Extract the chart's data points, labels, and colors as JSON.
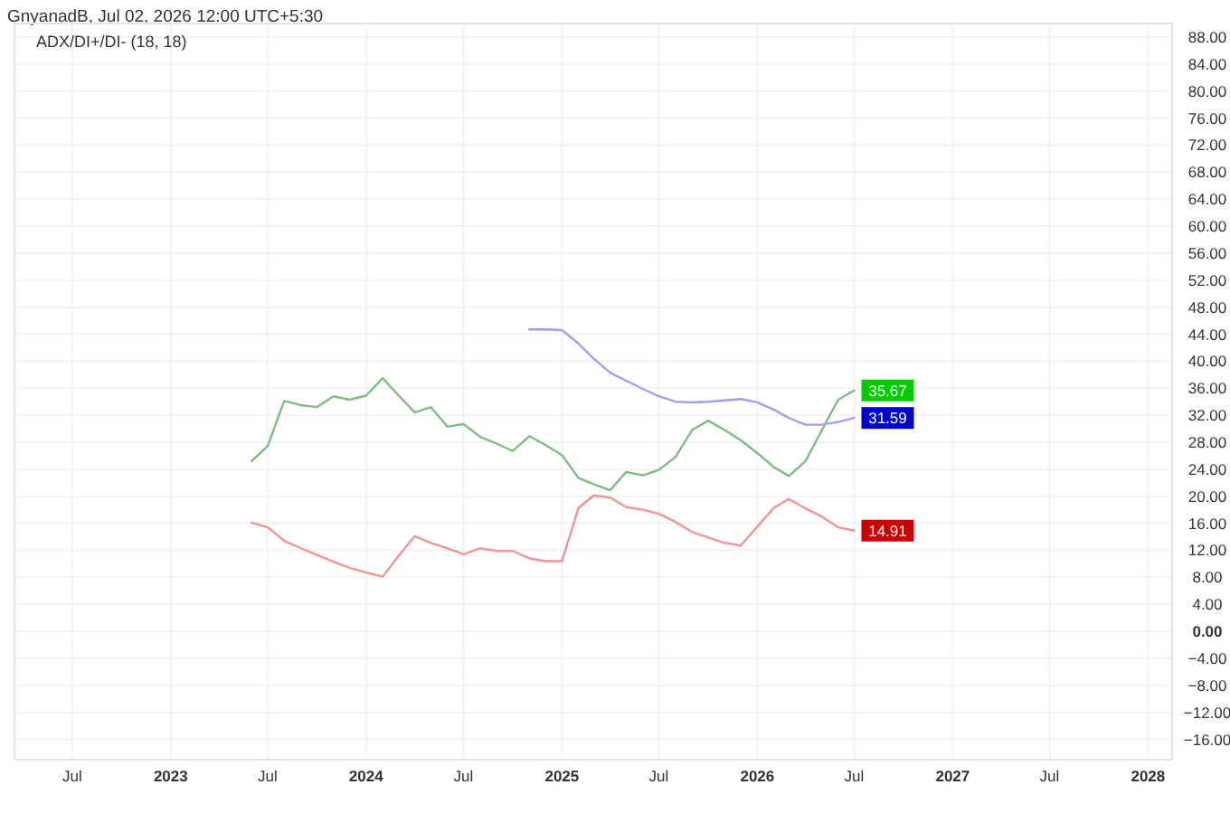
{
  "chart_data": {
    "type": "line",
    "title": "ADX/DI+/DI- (18, 18)",
    "subtitle": "GnyanadB, Jul 02, 2026 12:00 UTC+5:30",
    "x": [
      "2023-06",
      "2023-07",
      "2023-08",
      "2023-09",
      "2023-10",
      "2023-11",
      "2023-12",
      "2024-01",
      "2024-02",
      "2024-03",
      "2024-04",
      "2024-05",
      "2024-06",
      "2024-07",
      "2024-08",
      "2024-09",
      "2024-10",
      "2024-11",
      "2024-12",
      "2025-01",
      "2025-02",
      "2025-03",
      "2025-04",
      "2025-05",
      "2025-06",
      "2025-07",
      "2025-08",
      "2025-09",
      "2025-10",
      "2025-11",
      "2025-12",
      "2026-01",
      "2026-02",
      "2026-03",
      "2026-04",
      "2026-05",
      "2026-06",
      "2026-07"
    ],
    "series": [
      {
        "color": "#80bb80",
        "values": [
          25.2,
          27.4,
          34.1,
          33.5,
          33.2,
          34.8,
          34.3,
          34.9,
          37.5,
          35.0,
          32.4,
          33.2,
          30.3,
          30.7,
          28.8,
          27.8,
          26.7,
          28.9,
          27.6,
          26.1,
          22.7,
          21.8,
          20.9,
          23.6,
          23.1,
          23.9,
          25.8,
          29.8,
          31.2,
          29.8,
          28.3,
          26.4,
          24.3,
          23.0,
          25.2,
          29.7,
          34.3,
          35.67
        ],
        "value_labels": [
          null,
          null,
          null,
          null,
          null,
          null,
          null,
          null,
          null,
          null,
          null,
          null,
          null,
          null,
          null,
          null,
          null,
          null,
          null,
          null,
          null,
          null,
          null,
          null,
          null,
          null,
          null,
          null,
          null,
          null,
          null,
          null,
          null,
          null,
          null,
          null,
          null,
          "35.67"
        ]
      },
      {
        "color": "#f29494",
        "values": [
          16.1,
          15.4,
          13.4,
          12.3,
          11.3,
          10.3,
          9.4,
          8.7,
          8.1,
          11.1,
          14.1,
          13.1,
          12.3,
          11.4,
          12.3,
          11.9,
          11.9,
          10.8,
          10.4,
          10.4,
          18.3,
          20.1,
          19.8,
          18.4,
          18.0,
          17.4,
          16.2,
          14.7,
          13.9,
          13.1,
          12.7,
          15.5,
          18.3,
          19.6,
          18.2,
          17.0,
          15.4,
          14.91
        ],
        "value_labels": [
          null,
          null,
          null,
          null,
          null,
          null,
          null,
          null,
          null,
          null,
          null,
          null,
          null,
          null,
          null,
          null,
          null,
          null,
          null,
          null,
          null,
          null,
          null,
          null,
          null,
          null,
          null,
          null,
          null,
          null,
          null,
          null,
          null,
          null,
          null,
          null,
          null,
          "14.91"
        ]
      },
      {
        "color": "#9e9ef2",
        "x": [
          "2024-11",
          "2024-12",
          "2025-01",
          "2025-02",
          "2025-03",
          "2025-04",
          "2025-05",
          "2025-06",
          "2025-07",
          "2025-08",
          "2025-09",
          "2025-10",
          "2025-11",
          "2025-12",
          "2026-01",
          "2026-02",
          "2026-03",
          "2026-04",
          "2026-05",
          "2026-06",
          "2026-07"
        ],
        "values": [
          44.7,
          44.7,
          44.6,
          42.6,
          40.4,
          38.3,
          37.1,
          35.9,
          34.8,
          34.0,
          33.9,
          34.0,
          34.2,
          34.4,
          33.9,
          32.8,
          31.6,
          30.6,
          30.6,
          31.0,
          31.59
        ],
        "value_labels": [
          null,
          null,
          null,
          null,
          null,
          null,
          null,
          null,
          null,
          null,
          null,
          null,
          null,
          null,
          null,
          null,
          null,
          null,
          null,
          null,
          "31.59"
        ]
      }
    ],
    "xlim": [
      "2022-03-15",
      "2028-02-15"
    ],
    "xticks": [
      {
        "value": "2022-07",
        "label": "Jul"
      },
      {
        "value": "2023-01",
        "label": "2023"
      },
      {
        "value": "2023-07",
        "label": "Jul"
      },
      {
        "value": "2024-01",
        "label": "2024"
      },
      {
        "value": "2024-07",
        "label": "Jul"
      },
      {
        "value": "2025-01",
        "label": "2025"
      },
      {
        "value": "2025-07",
        "label": "Jul"
      },
      {
        "value": "2026-01",
        "label": "2026"
      },
      {
        "value": "2026-07",
        "label": "Jul"
      },
      {
        "value": "2027-01",
        "label": "2027"
      },
      {
        "value": "2027-07",
        "label": "Jul"
      },
      {
        "value": "2028-01",
        "label": "2028"
      }
    ],
    "ylim": [
      -19,
      90
    ],
    "yticks": [
      {
        "value": -16,
        "label": "−16.00"
      },
      {
        "value": -12,
        "label": "−12.00"
      },
      {
        "value": -8,
        "label": "−8.00"
      },
      {
        "value": -4,
        "label": "−4.00"
      },
      {
        "value": 0,
        "label": "0.00"
      },
      {
        "value": 4,
        "label": "4.00"
      },
      {
        "value": 8,
        "label": "8.00"
      },
      {
        "value": 12,
        "label": "12.00"
      },
      {
        "value": 16,
        "label": "16.00"
      },
      {
        "value": 20,
        "label": "20.00"
      },
      {
        "value": 24,
        "label": "24.00"
      },
      {
        "value": 28,
        "label": "28.00"
      },
      {
        "value": 32,
        "label": "32.00"
      },
      {
        "value": 36,
        "label": "36.00"
      },
      {
        "value": 40,
        "label": "40.00"
      },
      {
        "value": 44,
        "label": "44.00"
      },
      {
        "value": 48,
        "label": "48.00"
      },
      {
        "value": 52,
        "label": "52.00"
      },
      {
        "value": 56,
        "label": "56.00"
      },
      {
        "value": 60,
        "label": "60.00"
      },
      {
        "value": 64,
        "label": "64.00"
      },
      {
        "value": 68,
        "label": "68.00"
      },
      {
        "value": 72,
        "label": "72.00"
      },
      {
        "value": 76,
        "label": "76.00"
      },
      {
        "value": 80,
        "label": "80.00"
      },
      {
        "value": 84,
        "label": "84.00"
      },
      {
        "value": 88,
        "label": "88.00"
      }
    ],
    "grid": true,
    "marker": "none",
    "line_style": "solid"
  }
}
